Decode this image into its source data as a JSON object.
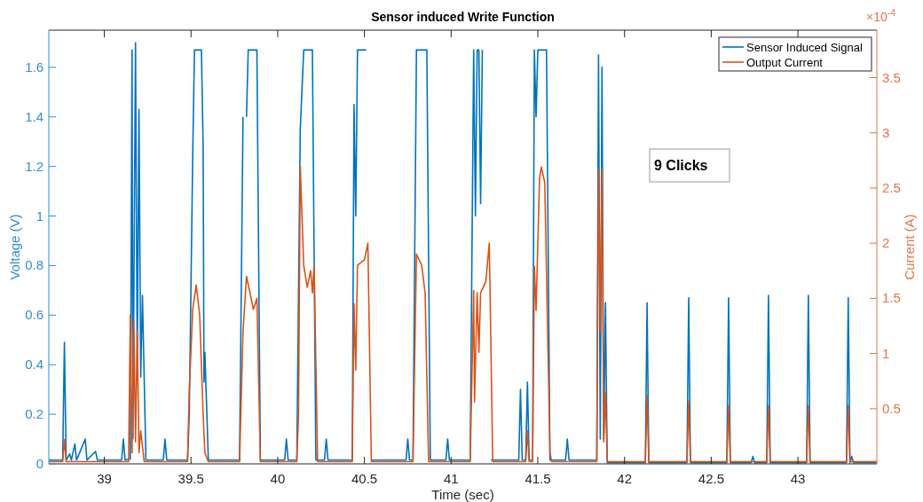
{
  "chart_data": {
    "type": "line",
    "title": "Sensor induced Write Function",
    "xlabel": "Time (sec)",
    "ylabel": "Voltage (V)",
    "y2label": "Current (A)",
    "xlim": [
      38.68,
      43.455
    ],
    "xticks": [
      39,
      39.5,
      40,
      40.5,
      41,
      41.5,
      42,
      42.5,
      43
    ],
    "ylim": [
      0,
      1.75
    ],
    "yticks": [
      0,
      0.2,
      0.4,
      0.6,
      0.8,
      1,
      1.2,
      1.4,
      1.6
    ],
    "y2lim": [
      0,
      3.93
    ],
    "y2ticks": [
      0.5,
      1,
      1.5,
      2,
      2.5,
      3,
      3.5
    ],
    "grid": false,
    "legend": "top right",
    "marker": "none",
    "line_style": "solid",
    "annotations": [
      "×10$^{-4}$",
      "9 Clicks"
    ],
    "series": [
      {
        "name": "Sensor Induced Signal",
        "color": "#0072bd",
        "x": [
          38.68,
          38.76,
          38.77,
          38.78,
          38.8,
          38.81,
          38.83,
          38.84,
          38.89,
          38.9,
          38.95,
          38.96,
          39.1,
          39.11,
          39.12,
          39.15,
          39.16,
          39.165,
          39.18,
          39.19,
          39.2,
          39.21,
          39.22,
          39.24,
          39.34,
          39.35,
          39.36,
          39.48,
          39.49,
          39.51,
          39.52,
          39.56,
          39.57,
          39.575,
          39.58,
          39.6,
          39.78,
          39.8,
          39.81,
          39.82,
          39.83,
          39.88,
          39.9,
          40.04,
          40.05,
          40.06,
          40.11,
          40.13,
          40.15,
          40.2,
          40.22,
          40.27,
          40.28,
          40.29,
          40.43,
          40.44,
          40.45,
          40.46,
          40.51,
          40.52,
          40.54,
          40.74,
          40.75,
          40.76,
          40.78,
          40.8,
          40.86,
          40.88,
          40.97,
          40.98,
          40.99,
          41.11,
          41.13,
          41.14,
          41.15,
          41.16,
          41.17,
          41.18,
          41.2,
          41.23,
          41.39,
          41.4,
          41.41,
          41.43,
          41.44,
          41.45,
          41.47,
          41.48,
          41.49,
          41.5,
          41.55,
          41.57,
          41.66,
          41.67,
          41.68,
          41.84,
          41.85,
          41.86,
          41.87,
          41.88,
          41.89,
          41.9,
          42.12,
          42.13,
          42.14,
          42.36,
          42.37,
          42.38,
          42.59,
          42.6,
          42.61,
          42.73,
          42.74,
          42.75,
          42.82,
          42.83,
          42.84,
          43.05,
          43.06,
          43.07,
          43.28,
          43.29,
          43.3,
          43.31,
          43.32,
          43.455
        ],
        "values": [
          0.015,
          0.015,
          0.49,
          0.015,
          0.04,
          0.015,
          0.08,
          0.015,
          0.1,
          0.015,
          0.05,
          0.015,
          0.015,
          0.1,
          0.015,
          0.02,
          1.67,
          0.1,
          1.7,
          0.4,
          1.43,
          0.35,
          0.68,
          0.015,
          0.015,
          0.1,
          0.015,
          0.015,
          0.2,
          1.25,
          1.67,
          1.67,
          1.28,
          0.33,
          0.45,
          0.015,
          0.015,
          1.4,
          null,
          1.4,
          1.67,
          1.67,
          0.015,
          0.015,
          0.1,
          0.015,
          0.015,
          1.35,
          1.67,
          1.67,
          0.015,
          0.015,
          0.1,
          0.015,
          0.015,
          1.45,
          1.0,
          1.67,
          1.67,
          null,
          0.015,
          0.015,
          0.1,
          0.015,
          0.015,
          1.67,
          1.67,
          0.015,
          0.015,
          0.1,
          0.015,
          0.015,
          1.67,
          1.0,
          1.67,
          1.67,
          1.05,
          1.67,
          null,
          0.015,
          0.015,
          0.3,
          0.015,
          0.015,
          0.33,
          0.015,
          0.015,
          1.67,
          1.4,
          1.67,
          1.67,
          0.015,
          0.015,
          0.1,
          0.015,
          0.015,
          1.65,
          0.1,
          1.6,
          0.1,
          0.65,
          0.005,
          0.005,
          0.65,
          0.005,
          0.005,
          0.67,
          0.005,
          0.005,
          0.67,
          0.005,
          0.005,
          0.03,
          0.005,
          0.005,
          0.68,
          0.005,
          0.005,
          0.68,
          0.005,
          0.005,
          0.67,
          0.005,
          0.03,
          0.005,
          0.005
        ]
      },
      {
        "name": "Output Current",
        "color": "#d95319",
        "axis": "y2",
        "x": [
          38.68,
          38.76,
          38.77,
          38.78,
          39.14,
          39.15,
          39.16,
          39.17,
          39.18,
          39.19,
          39.2,
          39.21,
          39.23,
          39.48,
          39.49,
          39.51,
          39.53,
          39.55,
          39.57,
          39.58,
          39.6,
          39.78,
          39.8,
          39.82,
          39.84,
          39.86,
          39.88,
          39.9,
          40.11,
          40.12,
          40.13,
          40.15,
          40.17,
          40.19,
          40.2,
          40.21,
          40.23,
          40.43,
          40.44,
          40.45,
          40.46,
          40.5,
          40.52,
          40.54,
          40.78,
          40.8,
          40.83,
          40.85,
          40.87,
          41.11,
          41.13,
          41.135,
          41.15,
          41.16,
          41.17,
          41.2,
          41.22,
          41.24,
          41.43,
          41.44,
          41.45,
          41.47,
          41.48,
          41.49,
          41.5,
          41.51,
          41.52,
          41.54,
          41.57,
          41.58,
          41.84,
          41.85,
          41.86,
          41.87,
          41.88,
          41.89,
          41.9,
          42.12,
          42.13,
          42.14,
          42.36,
          42.37,
          42.38,
          42.59,
          42.6,
          42.61,
          42.82,
          42.83,
          42.84,
          43.05,
          43.06,
          43.07,
          43.28,
          43.29,
          43.3,
          43.455
        ],
        "values": [
          0.02,
          0.02,
          0.22,
          0.02,
          0.02,
          1.35,
          0.1,
          1.3,
          0.2,
          1.2,
          0.1,
          0.3,
          0.02,
          0.02,
          0.67,
          1.4,
          1.62,
          1.35,
          0.45,
          0.1,
          0.02,
          0.02,
          1.2,
          1.7,
          1.55,
          1.4,
          1.5,
          0.02,
          0.02,
          0.45,
          2.7,
          1.8,
          1.6,
          1.75,
          1.55,
          1.8,
          0.02,
          0.02,
          1.45,
          0.85,
          1.8,
          1.85,
          2.0,
          0.02,
          0.02,
          1.9,
          1.8,
          1.55,
          0.02,
          0.02,
          1.57,
          0.56,
          1.55,
          1.01,
          1.55,
          1.65,
          2.0,
          0.02,
          0.02,
          0.3,
          0.02,
          0.02,
          1.79,
          1.39,
          2.0,
          2.59,
          2.69,
          2.55,
          0.1,
          0.02,
          0.02,
          2.67,
          1.2,
          2.67,
          0.2,
          0.65,
          0.02,
          0.02,
          0.62,
          0.02,
          0.02,
          0.57,
          0.02,
          0.02,
          0.53,
          0.02,
          0.02,
          0.53,
          0.02,
          0.02,
          0.53,
          0.02,
          0.02,
          0.53,
          0.02,
          0.02
        ]
      }
    ]
  }
}
